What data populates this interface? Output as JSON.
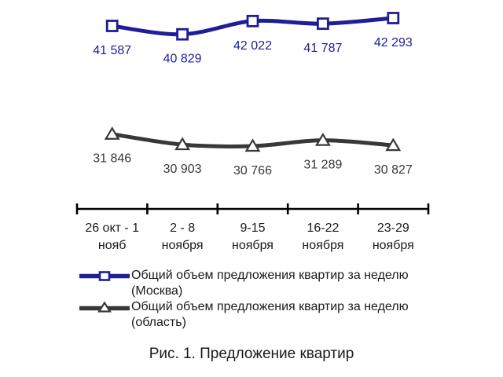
{
  "chart_data": {
    "type": "line",
    "caption": "Рис. 1. Предложение квартир",
    "background": "#ffffff",
    "axis_color": "#000000",
    "grid": false,
    "legend_position": "bottom-left",
    "categories": [
      {
        "line1": "26 окт - 1",
        "line2": "нояб"
      },
      {
        "line1": "2 - 8",
        "line2": "ноября"
      },
      {
        "line1": "9-15",
        "line2": "ноября"
      },
      {
        "line1": "16-22",
        "line2": "ноября"
      },
      {
        "line1": "23-29",
        "line2": "ноября"
      }
    ],
    "series": [
      {
        "name": "Общий объем предложения квартир за неделю (Москва)",
        "values": [
          41587,
          40829,
          42022,
          41787,
          42293
        ],
        "labels": [
          "41 587",
          "40 829",
          "42 022",
          "41 787",
          "42 293"
        ],
        "color": "#1E1E96",
        "marker": "square"
      },
      {
        "name": "Общий объем предложения квартир за неделю (область)",
        "values": [
          31846,
          30903,
          30766,
          31289,
          30827
        ],
        "labels": [
          "31 846",
          "30 903",
          "30 766",
          "31 289",
          "30 827"
        ],
        "color": "#383838",
        "marker": "triangle"
      }
    ],
    "legend": [
      {
        "label": "Общий объем предложения квартир за неделю (Москва)"
      },
      {
        "label": "Общий объем предложения квартир за неделю (область)"
      }
    ]
  }
}
